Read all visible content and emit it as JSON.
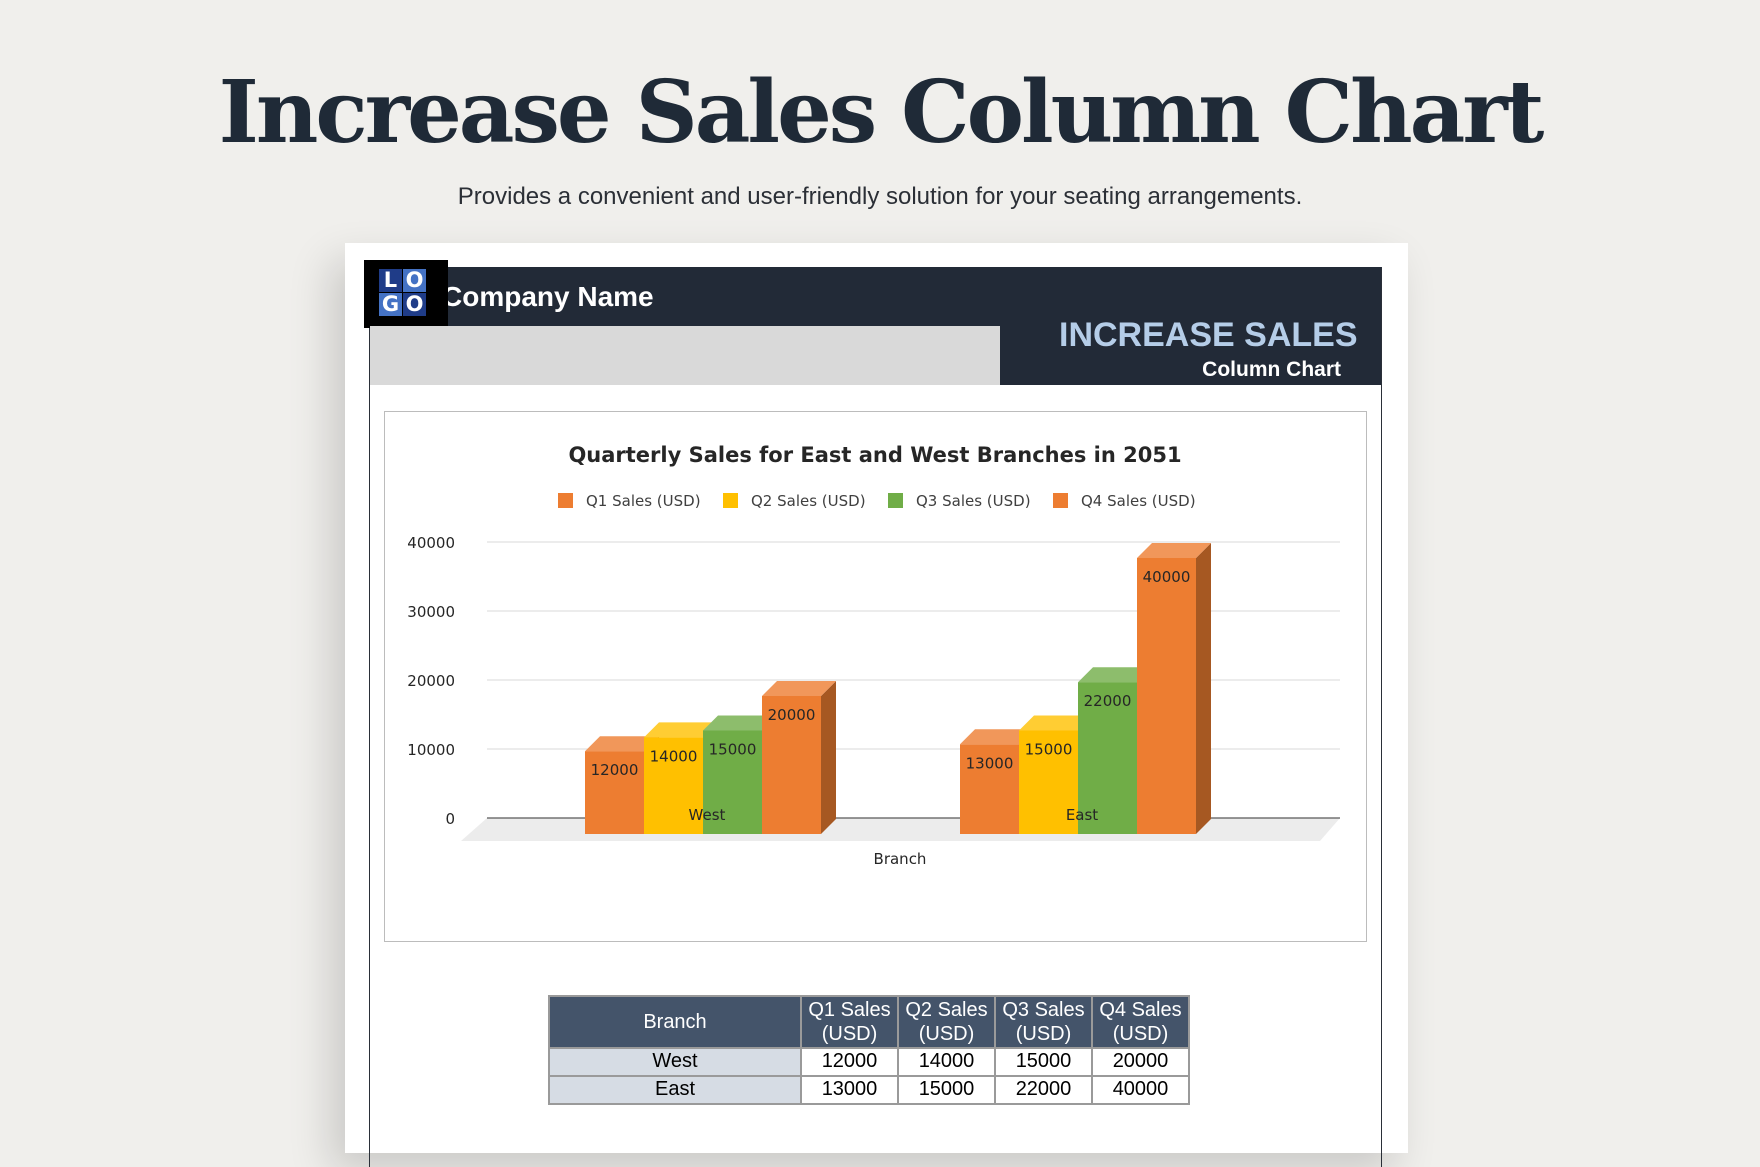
{
  "page": {
    "title": "Increase Sales Column Chart",
    "subtitle": "Provides a convenient and user-friendly solution for your seating arrangements."
  },
  "header": {
    "logo": [
      "L",
      "O",
      "G",
      "O"
    ],
    "company_name": "Company Name",
    "box_title": "INCREASE SALES",
    "box_subtitle": "Column Chart"
  },
  "colors": {
    "q1": "#ed7d31",
    "q2": "#ffc000",
    "q3": "#70ad47",
    "q4": "#ed7d31",
    "header_dark": "#222a37",
    "table_header": "#44546a",
    "logo_blue": "#1f3c88",
    "logo_light": "#4472c4"
  },
  "chart_data": {
    "type": "bar",
    "title": "Quarterly Sales for East and West Branches in 2051",
    "xlabel": "Branch",
    "ylabel": "",
    "categories": [
      "West",
      "East"
    ],
    "series": [
      {
        "name": "Q1 Sales (USD)",
        "values": [
          12000,
          13000
        ]
      },
      {
        "name": "Q2 Sales (USD)",
        "values": [
          14000,
          15000
        ]
      },
      {
        "name": "Q3 Sales (USD)",
        "values": [
          15000,
          22000
        ]
      },
      {
        "name": "Q4 Sales (USD)",
        "values": [
          20000,
          40000
        ]
      }
    ],
    "ylim": [
      0,
      40000
    ],
    "yticks": [
      0,
      10000,
      20000,
      30000,
      40000
    ],
    "legend": "top",
    "grid": true,
    "style": "3d-clustered-column",
    "data_labels": true
  },
  "table": {
    "headers": [
      "Branch",
      "Q1 Sales (USD)",
      "Q2 Sales (USD)",
      "Q3 Sales (USD)",
      "Q4 Sales (USD)"
    ],
    "rows": [
      [
        "West",
        "12000",
        "14000",
        "15000",
        "20000"
      ],
      [
        "East",
        "13000",
        "15000",
        "22000",
        "40000"
      ]
    ]
  }
}
